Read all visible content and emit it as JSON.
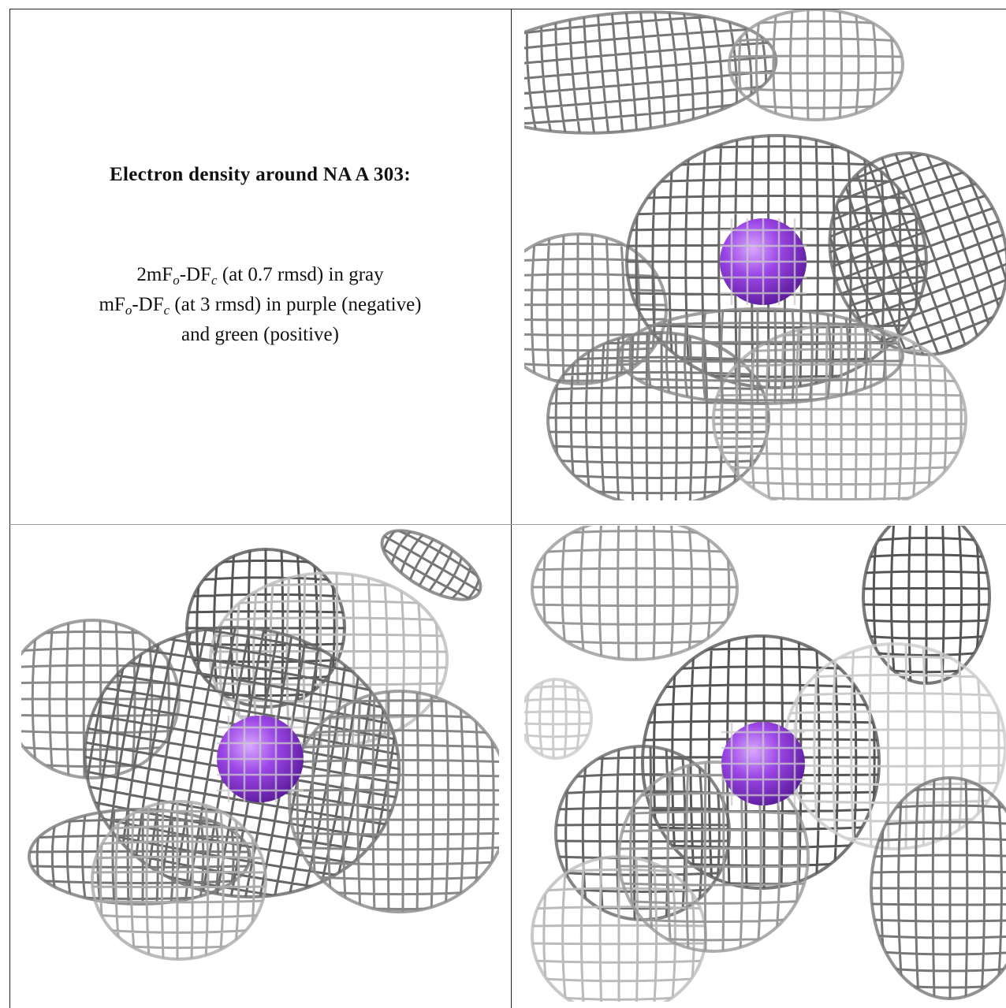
{
  "figure": {
    "title": "Electron density around NA A 303:",
    "caption_lines": [
      [
        "2mF",
        "o",
        "-DF",
        "c",
        " (at 0.7 rmsd) in gray"
      ],
      [
        "mF",
        "o",
        "-DF",
        "c",
        " (at 3 rmsd) in purple (negative)"
      ],
      [
        "and green (positive)"
      ]
    ]
  }
}
